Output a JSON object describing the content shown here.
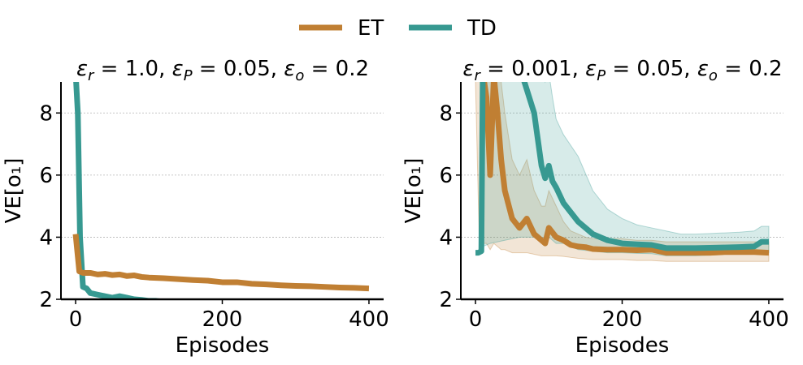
{
  "legend": {
    "placement": "top-center",
    "entries": [
      {
        "label": "ET",
        "color": "#C07F33"
      },
      {
        "label": "TD",
        "color": "#379991"
      }
    ]
  },
  "chart_data": [
    {
      "type": "line",
      "title_math": {
        "parts": [
          "ε",
          "r",
          " = 1.0, ",
          "ε",
          "P",
          " = 0.05, ",
          "ε",
          "o",
          " = 0.2"
        ]
      },
      "xlabel": "Episodes",
      "ylabel": "VE[o₁]",
      "xlim": [
        -20,
        420
      ],
      "ylim": [
        2,
        9
      ],
      "xticks": [
        0,
        200,
        400
      ],
      "yticks": [
        2,
        4,
        6,
        8
      ],
      "grid": "horizontal-dashed",
      "series": [
        {
          "name": "ET",
          "color": "#C07F33",
          "x": [
            0,
            5,
            10,
            20,
            30,
            40,
            50,
            60,
            70,
            80,
            90,
            100,
            120,
            140,
            160,
            180,
            200,
            220,
            240,
            260,
            280,
            300,
            320,
            340,
            360,
            380,
            400
          ],
          "y": [
            4.1,
            2.9,
            2.85,
            2.85,
            2.8,
            2.82,
            2.78,
            2.8,
            2.75,
            2.77,
            2.72,
            2.7,
            2.68,
            2.65,
            2.62,
            2.6,
            2.55,
            2.55,
            2.5,
            2.48,
            2.45,
            2.43,
            2.42,
            2.4,
            2.38,
            2.37,
            2.35
          ],
          "lower": [],
          "upper": []
        },
        {
          "name": "TD",
          "color": "#379991",
          "x": [
            0,
            3,
            6,
            10,
            15,
            20,
            30,
            40,
            50,
            60,
            70,
            80,
            90,
            100,
            110,
            120,
            130,
            140,
            150
          ],
          "y": [
            9.3,
            8.0,
            4.0,
            2.4,
            2.35,
            2.2,
            2.15,
            2.1,
            2.05,
            2.1,
            2.05,
            2.0,
            1.98,
            1.95,
            1.95,
            1.92,
            1.92,
            1.9,
            1.9
          ],
          "lower": [],
          "upper": []
        }
      ]
    },
    {
      "type": "line",
      "title_math": {
        "parts": [
          "ε",
          "r",
          " = 0.001, ",
          "ε",
          "P",
          " = 0.05, ",
          "ε",
          "o",
          " = 0.2"
        ]
      },
      "xlabel": "Episodes",
      "ylabel": "VE[o₁]",
      "xlim": [
        -20,
        420
      ],
      "ylim": [
        2,
        9
      ],
      "xticks": [
        0,
        200,
        400
      ],
      "yticks": [
        2,
        4,
        6,
        8
      ],
      "grid": "horizontal-dashed",
      "series": [
        {
          "name": "ET",
          "color": "#C07F33",
          "x": [
            0,
            5,
            10,
            15,
            20,
            25,
            30,
            35,
            40,
            50,
            60,
            70,
            80,
            90,
            95,
            100,
            110,
            120,
            130,
            140,
            150,
            160,
            180,
            200,
            220,
            240,
            260,
            280,
            300,
            320,
            340,
            360,
            380,
            400
          ],
          "y": [
            9.5,
            9.5,
            9.3,
            8.5,
            6.0,
            9.2,
            8.0,
            6.5,
            5.5,
            4.6,
            4.3,
            4.6,
            4.1,
            3.9,
            3.8,
            4.3,
            4.0,
            3.9,
            3.75,
            3.7,
            3.68,
            3.62,
            3.6,
            3.6,
            3.58,
            3.6,
            3.5,
            3.5,
            3.5,
            3.5,
            3.52,
            3.52,
            3.52,
            3.5
          ],
          "lower": [
            9.0,
            4.0,
            3.8,
            3.8,
            3.6,
            3.8,
            3.7,
            3.6,
            3.6,
            3.5,
            3.5,
            3.5,
            3.45,
            3.4,
            3.4,
            3.4,
            3.4,
            3.38,
            3.35,
            3.32,
            3.3,
            3.28,
            3.28,
            3.28,
            3.25,
            3.25,
            3.22,
            3.22,
            3.22,
            3.22,
            3.22,
            3.22,
            3.22,
            3.22
          ],
          "upper": [
            9.5,
            9.5,
            9.5,
            9.5,
            9.5,
            9.5,
            9.5,
            9.0,
            8.0,
            6.5,
            6.0,
            6.5,
            5.5,
            5.0,
            5.0,
            5.5,
            5.0,
            4.5,
            4.2,
            4.1,
            4.0,
            3.95,
            3.95,
            3.95,
            3.9,
            3.9,
            3.85,
            3.85,
            3.85,
            3.85,
            3.85,
            3.85,
            3.85,
            3.85
          ]
        },
        {
          "name": "TD",
          "color": "#379991",
          "x": [
            0,
            4,
            8,
            10,
            20,
            40,
            60,
            80,
            90,
            95,
            100,
            105,
            110,
            120,
            140,
            160,
            180,
            200,
            220,
            240,
            260,
            280,
            300,
            320,
            340,
            360,
            380,
            390,
            400
          ],
          "y": [
            3.5,
            3.5,
            3.55,
            9.5,
            9.5,
            9.5,
            9.5,
            8.0,
            6.3,
            5.9,
            6.3,
            5.8,
            5.6,
            5.1,
            4.5,
            4.1,
            3.9,
            3.8,
            3.77,
            3.75,
            3.65,
            3.65,
            3.65,
            3.66,
            3.67,
            3.68,
            3.7,
            3.85,
            3.85
          ],
          "lower": [
            3.5,
            3.5,
            3.5,
            3.7,
            3.8,
            3.9,
            4.0,
            4.0,
            3.9,
            3.9,
            4.0,
            3.9,
            3.8,
            3.8,
            3.6,
            3.55,
            3.5,
            3.5,
            3.48,
            3.47,
            3.4,
            3.4,
            3.4,
            3.42,
            3.45,
            3.45,
            3.47,
            3.5,
            3.5
          ],
          "upper": [
            3.5,
            3.5,
            3.6,
            9.5,
            9.5,
            9.5,
            9.5,
            9.5,
            9.5,
            9.0,
            9.3,
            8.5,
            7.8,
            7.3,
            6.6,
            5.5,
            4.9,
            4.6,
            4.4,
            4.3,
            4.2,
            4.1,
            4.1,
            4.12,
            4.14,
            4.16,
            4.2,
            4.35,
            4.35
          ]
        }
      ]
    }
  ]
}
